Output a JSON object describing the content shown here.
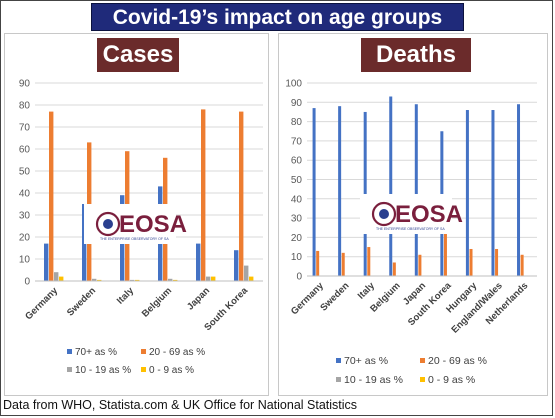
{
  "title": "Covid-19’s impact on age groups",
  "footer": "Data from WHO, Statista.com & UK Office for National Statistics",
  "watermark": {
    "brand": "EOSA",
    "subtitle": "THE ENTERPRISE OBSERVATORY OF SA"
  },
  "colors": {
    "70+": "#4472c4",
    "20-69": "#ed7d31",
    "10-19": "#a5a5a5",
    "0-9": "#ffc000",
    "title_bg": "#1f2a7a",
    "panel_title_bg": "#6b2b2b"
  },
  "chart_data": [
    {
      "type": "bar",
      "title": "Cases",
      "categories": [
        "Germany",
        "Sweden",
        "Italy",
        "Belgium",
        "Japan",
        "South Korea"
      ],
      "ylim": [
        0,
        90
      ],
      "yticks": [
        0,
        10,
        20,
        30,
        40,
        50,
        60,
        70,
        80,
        90
      ],
      "grid": true,
      "legend_position": "bottom",
      "series": [
        {
          "name": "70+ as %",
          "values": [
            17,
            35,
            39,
            43,
            17,
            14
          ]
        },
        {
          "name": "20 - 69 as %",
          "values": [
            77,
            63,
            59,
            56,
            78,
            77
          ]
        },
        {
          "name": "10 - 19 as %",
          "values": [
            4,
            1,
            0.5,
            1,
            2,
            7
          ]
        },
        {
          "name": "0 - 9 as %",
          "values": [
            2,
            0.5,
            0.5,
            0.5,
            2,
            2
          ]
        }
      ]
    },
    {
      "type": "bar",
      "title": "Deaths",
      "categories": [
        "Germany",
        "Sweden",
        "Italy",
        "Belgium",
        "Japan",
        "South Korea",
        "Hungary",
        "England/Wales",
        "Netherlands"
      ],
      "ylim": [
        0,
        100
      ],
      "yticks": [
        0,
        10,
        20,
        30,
        40,
        50,
        60,
        70,
        80,
        90,
        100
      ],
      "grid": true,
      "legend_position": "bottom",
      "series": [
        {
          "name": "70+ as %",
          "values": [
            87,
            88,
            85,
            93,
            89,
            75,
            86,
            86,
            89
          ]
        },
        {
          "name": "20 - 69 as %",
          "values": [
            13,
            12,
            15,
            7,
            11,
            25,
            14,
            14,
            11
          ]
        },
        {
          "name": "10 - 19 as %",
          "values": [
            0,
            0,
            0,
            0,
            0,
            0,
            0,
            0,
            0
          ]
        },
        {
          "name": "0 - 9 as %",
          "values": [
            0,
            0,
            0,
            0,
            0,
            0,
            0,
            0,
            0
          ]
        }
      ]
    }
  ]
}
